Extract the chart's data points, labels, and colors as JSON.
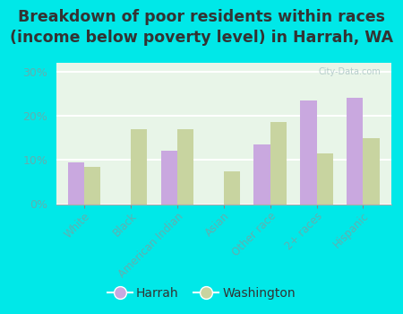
{
  "title": "Breakdown of poor residents within races\n(income below poverty level) in Harrah, WA",
  "categories": [
    "White",
    "Black",
    "American Indian",
    "Asian",
    "Other race",
    "2+ races",
    "Hispanic"
  ],
  "harrah": [
    9.5,
    0,
    12.0,
    0,
    13.5,
    23.5,
    24.0
  ],
  "washington": [
    8.5,
    17.0,
    17.0,
    7.5,
    18.5,
    11.5,
    15.0
  ],
  "harrah_color": "#c9a8df",
  "washington_color": "#c8d4a0",
  "background_color": "#e8f5e8",
  "outer_background": "#00e8e8",
  "ylim": [
    0,
    32
  ],
  "yticks": [
    0,
    10,
    20,
    30
  ],
  "ytick_labels": [
    "0%",
    "10%",
    "20%",
    "30%"
  ],
  "title_fontsize": 12.5,
  "tick_color": "#60b0b0",
  "legend_harrah": "Harrah",
  "legend_washington": "Washington"
}
